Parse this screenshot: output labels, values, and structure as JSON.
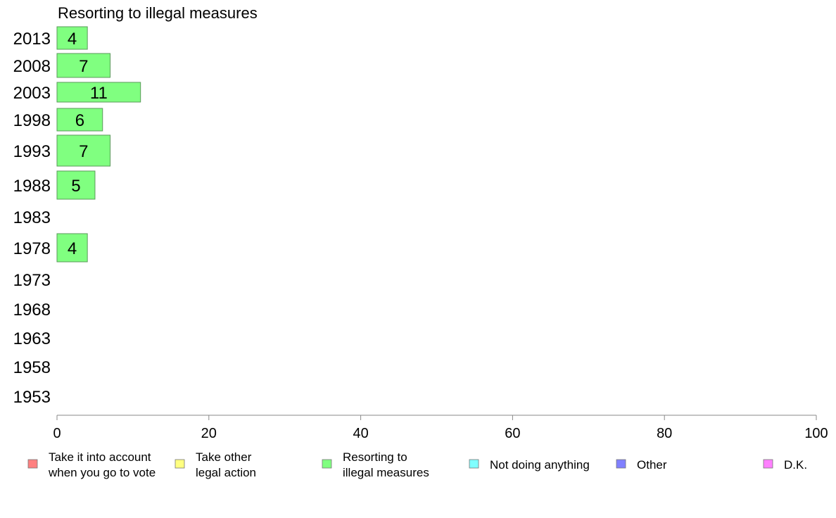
{
  "chart_data": {
    "type": "bar",
    "orientation": "horizontal",
    "title": "Resorting to illegal measures",
    "xlabel": "",
    "ylabel": "",
    "xlim": [
      0,
      100
    ],
    "x_ticks": [
      0,
      20,
      40,
      60,
      80,
      100
    ],
    "grid": false,
    "legend_position": "bottom",
    "categories": [
      "2013",
      "2008",
      "2003",
      "1998",
      "1993",
      "1988",
      "1983",
      "1978",
      "1973",
      "1968",
      "1963",
      "1958",
      "1953"
    ],
    "series": [
      {
        "name": "Resorting to illegal measures",
        "color": "#80ff80",
        "values": [
          4,
          7,
          11,
          6,
          7,
          5,
          null,
          4,
          null,
          null,
          null,
          null,
          null
        ]
      }
    ],
    "legend": [
      {
        "label": [
          "Take it into account",
          "when you go to vote"
        ],
        "color": "#ff8080"
      },
      {
        "label": [
          "Take other",
          "legal action"
        ],
        "color": "#ffff80"
      },
      {
        "label": [
          "Resorting to",
          "illegal measures"
        ],
        "color": "#80ff80"
      },
      {
        "label": [
          "Not doing anything"
        ],
        "color": "#80ffff"
      },
      {
        "label": [
          "Other"
        ],
        "color": "#8080ff"
      },
      {
        "label": [
          "D.K."
        ],
        "color": "#ff80ff"
      }
    ]
  }
}
